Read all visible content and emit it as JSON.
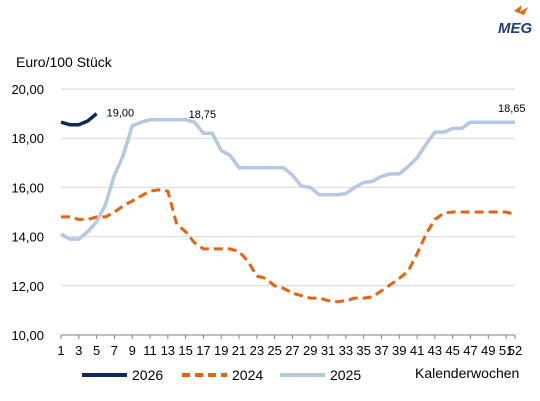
{
  "logo": {
    "text": "MEG"
  },
  "chart_data": {
    "type": "line",
    "ylabel": "Euro/100 Stück",
    "xlabel": "Kalenderwochen",
    "ylim": [
      10,
      20
    ],
    "xlim": [
      1,
      52
    ],
    "ytick_labels": [
      "10,00",
      "12,00",
      "14,00",
      "16,00",
      "18,00",
      "20,00"
    ],
    "ytick_values": [
      10,
      12,
      14,
      16,
      18,
      20
    ],
    "xtick_values": [
      1,
      3,
      5,
      7,
      9,
      11,
      13,
      15,
      17,
      19,
      21,
      23,
      25,
      27,
      29,
      31,
      33,
      35,
      37,
      39,
      41,
      43,
      45,
      47,
      49,
      51,
      52
    ],
    "grid": "horizontal",
    "legend_placement": "bottom",
    "series": [
      {
        "name": "2026",
        "color": "#0f2a5a",
        "dash": "solid",
        "x": [
          1,
          2,
          3,
          4,
          5
        ],
        "y": [
          18.65,
          18.55,
          18.55,
          18.7,
          19.0
        ]
      },
      {
        "name": "2024",
        "color": "#e8620e",
        "dash": "dashed",
        "x": [
          1,
          2,
          3,
          4,
          5,
          6,
          7,
          8,
          9,
          10,
          11,
          12,
          13,
          14,
          15,
          16,
          17,
          18,
          19,
          20,
          21,
          22,
          23,
          24,
          25,
          26,
          27,
          28,
          29,
          30,
          31,
          32,
          33,
          34,
          35,
          36,
          37,
          38,
          39,
          40,
          41,
          42,
          43,
          44,
          45,
          46,
          47,
          48,
          49,
          50,
          51,
          52
        ],
        "y": [
          14.8,
          14.8,
          14.7,
          14.7,
          14.8,
          14.8,
          15.0,
          15.25,
          15.45,
          15.65,
          15.85,
          15.9,
          15.85,
          14.5,
          14.2,
          13.75,
          13.5,
          13.5,
          13.5,
          13.5,
          13.4,
          13.0,
          12.4,
          12.3,
          12.0,
          11.9,
          11.7,
          11.6,
          11.5,
          11.5,
          11.4,
          11.35,
          11.4,
          11.5,
          11.5,
          11.55,
          11.8,
          12.05,
          12.3,
          12.6,
          13.3,
          14.1,
          14.7,
          14.95,
          15.0,
          15.0,
          15.0,
          15.0,
          15.0,
          15.0,
          15.0,
          14.9
        ]
      },
      {
        "name": "2025",
        "color": "#b4c8e4",
        "dash": "solid",
        "x": [
          1,
          2,
          3,
          4,
          5,
          6,
          7,
          8,
          9,
          10,
          11,
          12,
          13,
          14,
          15,
          16,
          17,
          18,
          19,
          20,
          21,
          22,
          23,
          24,
          25,
          26,
          27,
          28,
          29,
          30,
          31,
          32,
          33,
          34,
          35,
          36,
          37,
          38,
          39,
          40,
          41,
          42,
          43,
          44,
          45,
          46,
          47,
          48,
          49,
          50,
          51,
          52
        ],
        "y": [
          14.1,
          13.9,
          13.9,
          14.2,
          14.6,
          15.3,
          16.5,
          17.3,
          18.5,
          18.65,
          18.75,
          18.75,
          18.75,
          18.75,
          18.75,
          18.65,
          18.2,
          18.2,
          17.5,
          17.3,
          16.8,
          16.8,
          16.8,
          16.8,
          16.8,
          16.8,
          16.5,
          16.05,
          16.0,
          15.7,
          15.7,
          15.7,
          15.75,
          16.0,
          16.2,
          16.25,
          16.45,
          16.55,
          16.55,
          16.85,
          17.2,
          17.75,
          18.25,
          18.25,
          18.4,
          18.4,
          18.65,
          18.65,
          18.65,
          18.65,
          18.65,
          18.65
        ]
      }
    ],
    "annotations": [
      {
        "text": "19,00",
        "x": 5,
        "y": 19.0
      },
      {
        "text": "18,75",
        "x": 15,
        "y": 18.75
      },
      {
        "text": "18,65",
        "x": 52,
        "y": 18.65
      }
    ],
    "legend_order": [
      "2026",
      "2024",
      "2025"
    ]
  }
}
